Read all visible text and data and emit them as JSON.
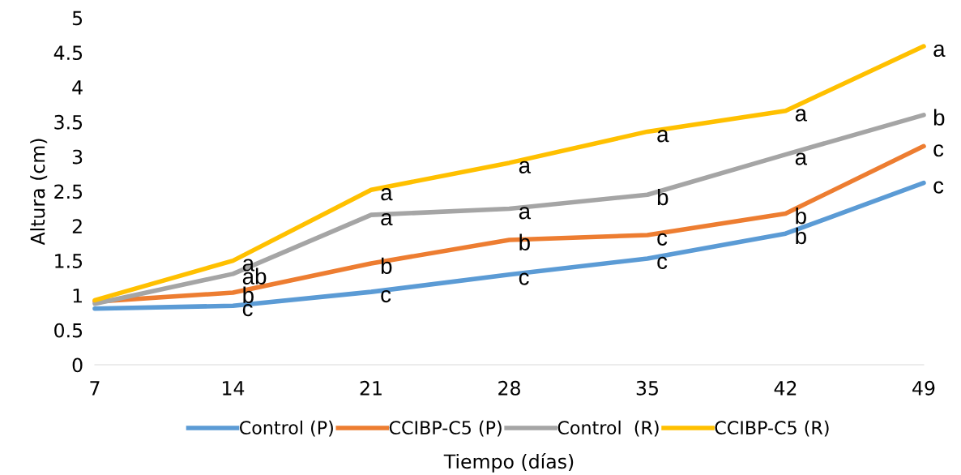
{
  "chart_data": {
    "type": "line",
    "xlabel": "Tiempo (días)",
    "ylabel": "Altura (cm)",
    "x": [
      7,
      14,
      21,
      28,
      35,
      42,
      49
    ],
    "xlim": [
      7,
      49
    ],
    "xticks": [
      7,
      14,
      21,
      28,
      35,
      42,
      49
    ],
    "ylim": [
      0,
      5
    ],
    "yticks": [
      0,
      0.5,
      1,
      1.5,
      2,
      2.5,
      3,
      3.5,
      4,
      4.5,
      5
    ],
    "grid": false,
    "legend": "bottom",
    "marker": "none",
    "line_style": "solid",
    "series": [
      {
        "name": "Control (P)",
        "color": "#5b9bd5",
        "values": [
          0.81,
          0.85,
          1.05,
          1.3,
          1.53,
          1.89,
          2.62
        ]
      },
      {
        "name": "CCIBP-C5 (P)",
        "color": "#ed7d31",
        "values": [
          0.91,
          1.04,
          1.46,
          1.8,
          1.87,
          2.18,
          3.15
        ]
      },
      {
        "name": "Control  (R)",
        "color": "#a5a5a5",
        "values": [
          0.88,
          1.31,
          2.16,
          2.25,
          2.45,
          3.03,
          3.6
        ]
      },
      {
        "name": "CCIBP-C5 (R)",
        "color": "#ffc000",
        "values": [
          0.93,
          1.5,
          2.52,
          2.91,
          3.36,
          3.66,
          4.59
        ]
      }
    ],
    "annotations": [
      {
        "text": "a",
        "x": 14,
        "y": 1.5
      },
      {
        "text": "ab",
        "x": 14,
        "y": 1.31
      },
      {
        "text": "b",
        "x": 14,
        "y": 1.04
      },
      {
        "text": "c",
        "x": 14,
        "y": 0.85
      },
      {
        "text": "a",
        "x": 21,
        "y": 2.52
      },
      {
        "text": "a",
        "x": 21,
        "y": 2.16
      },
      {
        "text": "b",
        "x": 21,
        "y": 1.46
      },
      {
        "text": "c",
        "x": 21,
        "y": 1.05
      },
      {
        "text": "a",
        "x": 28,
        "y": 2.91
      },
      {
        "text": "a",
        "x": 28,
        "y": 2.25
      },
      {
        "text": "b",
        "x": 28,
        "y": 1.8
      },
      {
        "text": "c",
        "x": 28,
        "y": 1.3
      },
      {
        "text": "a",
        "x": 35,
        "y": 3.36
      },
      {
        "text": "b",
        "x": 35,
        "y": 2.45
      },
      {
        "text": "c",
        "x": 35,
        "y": 1.87
      },
      {
        "text": "c",
        "x": 35,
        "y": 1.53
      },
      {
        "text": "a",
        "x": 42,
        "y": 3.66
      },
      {
        "text": "a",
        "x": 42,
        "y": 3.03
      },
      {
        "text": "b",
        "x": 42,
        "y": 2.18
      },
      {
        "text": "b",
        "x": 42,
        "y": 1.89
      },
      {
        "text": "a",
        "x": 49,
        "y": 4.59
      },
      {
        "text": "b",
        "x": 49,
        "y": 3.6
      },
      {
        "text": "c",
        "x": 49,
        "y": 3.15
      },
      {
        "text": "c",
        "x": 49,
        "y": 2.62
      }
    ]
  }
}
